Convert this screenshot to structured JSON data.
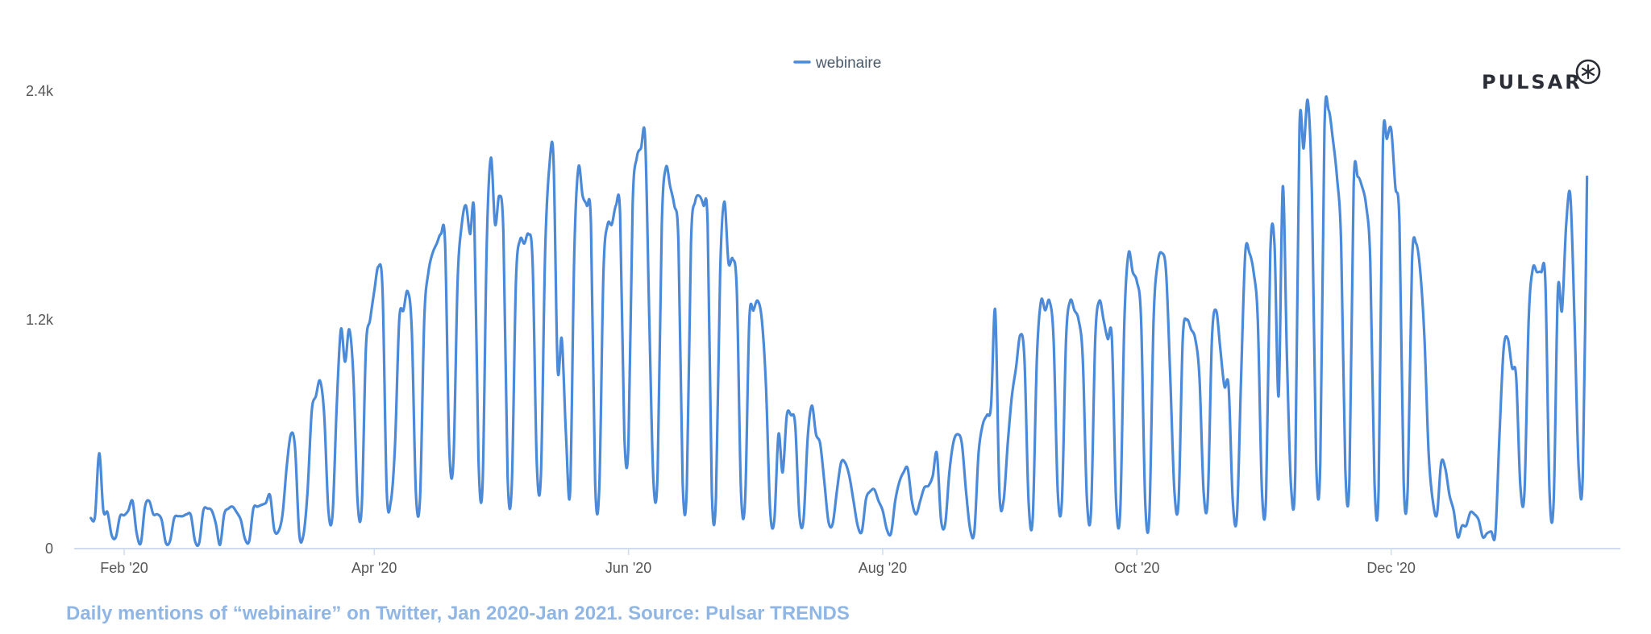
{
  "brand": {
    "logo_text": "PULSAR",
    "logo_icon": "pulsar-star-icon"
  },
  "caption": "Daily mentions of “webinaire” on Twitter, Jan 2020-Jan 2021. Source: Pulsar TRENDS",
  "colors": {
    "series": "#4a8ad9",
    "axis": "#cfdcee",
    "caption": "#8fb6e4"
  },
  "chart_data": {
    "type": "line",
    "legend_placement": "top-center",
    "grid": false,
    "xlim": [
      "2020-01-20",
      "2021-01-25"
    ],
    "ylim": [
      0,
      2400
    ],
    "y_ticks": [
      {
        "value": 0,
        "label": "0"
      },
      {
        "value": 1200,
        "label": "1.2k"
      },
      {
        "value": 2400,
        "label": "2.4k"
      }
    ],
    "x_ticks": [
      {
        "value": "2020-02-01",
        "label": "Feb '20"
      },
      {
        "value": "2020-04-01",
        "label": "Apr '20"
      },
      {
        "value": "2020-06-01",
        "label": "Jun '20"
      },
      {
        "value": "2020-08-01",
        "label": "Aug '20"
      },
      {
        "value": "2020-10-01",
        "label": "Oct '20"
      },
      {
        "value": "2020-12-01",
        "label": "Dec '20"
      }
    ],
    "series": [
      {
        "name": "webinaire",
        "start": "2020-01-24",
        "values": [
          160,
          170,
          500,
          200,
          190,
          70,
          60,
          170,
          175,
          200,
          250,
          80,
          30,
          220,
          250,
          180,
          180,
          150,
          30,
          40,
          160,
          170,
          170,
          180,
          175,
          40,
          30,
          200,
          210,
          200,
          130,
          20,
          180,
          210,
          220,
          190,
          150,
          50,
          40,
          210,
          220,
          230,
          240,
          280,
          100,
          90,
          180,
          430,
          600,
          530,
          80,
          70,
          300,
          720,
          800,
          880,
          700,
          200,
          180,
          750,
          1150,
          980,
          1150,
          900,
          250,
          220,
          1050,
          1200,
          1350,
          1480,
          1350,
          300,
          250,
          550,
          1200,
          1250,
          1350,
          1150,
          290,
          270,
          1200,
          1450,
          1550,
          1600,
          1650,
          1600,
          530,
          460,
          1400,
          1700,
          1800,
          1650,
          1750,
          480,
          340,
          1600,
          2050,
          1700,
          1850,
          1650,
          380,
          330,
          1400,
          1620,
          1600,
          1650,
          1500,
          450,
          390,
          1550,
          2000,
          2050,
          950,
          1100,
          600,
          300,
          1550,
          2000,
          1850,
          1800,
          1700,
          350,
          320,
          1450,
          1700,
          1700,
          1800,
          1750,
          600,
          550,
          1800,
          2050,
          2100,
          2150,
          1200,
          350,
          400,
          1700,
          2000,
          1900,
          1800,
          1600,
          350,
          320,
          1600,
          1820,
          1850,
          1800,
          1700,
          300,
          270,
          1450,
          1820,
          1500,
          1520,
          1350,
          300,
          260,
          1200,
          1250,
          1300,
          1200,
          850,
          200,
          150,
          600,
          400,
          700,
          700,
          650,
          180,
          150,
          580,
          750,
          600,
          550,
          350,
          140,
          130,
          300,
          450,
          450,
          380,
          250,
          120,
          90,
          260,
          300,
          310,
          250,
          200,
          100,
          80,
          250,
          350,
          400,
          420,
          250,
          180,
          250,
          320,
          330,
          380,
          500,
          150,
          130,
          400,
          560,
          600,
          550,
          300,
          100,
          90,
          500,
          650,
          700,
          750,
          1250,
          300,
          250,
          550,
          800,
          950,
          1120,
          1000,
          250,
          160,
          1000,
          1300,
          1250,
          1300,
          1100,
          300,
          250,
          1100,
          1300,
          1250,
          1200,
          1000,
          260,
          200,
          1100,
          1300,
          1200,
          1100,
          1100,
          250,
          200,
          1200,
          1550,
          1450,
          1400,
          1200,
          240,
          180,
          1200,
          1500,
          1550,
          1450,
          900,
          300,
          250,
          1100,
          1200,
          1150,
          1100,
          900,
          300,
          260,
          1100,
          1250,
          1050,
          850,
          850,
          250,
          170,
          900,
          1550,
          1550,
          1450,
          1200,
          300,
          280,
          1550,
          1600,
          800,
          1900,
          1000,
          320,
          400,
          2200,
          2100,
          2350,
          1850,
          460,
          450,
          2200,
          2300,
          2150,
          1950,
          1600,
          420,
          370,
          1900,
          1950,
          1900,
          1800,
          1500,
          350,
          320,
          2100,
          2150,
          2200,
          1900,
          1700,
          350,
          330,
          1500,
          1600,
          1450,
          1100,
          500,
          250,
          180,
          450,
          420,
          280,
          200,
          60,
          120,
          120,
          190,
          180,
          150,
          60,
          80,
          90,
          80,
          600,
          1050,
          1100,
          950,
          900,
          330,
          300,
          1200,
          1470,
          1450,
          1450,
          1400,
          300,
          250,
          1350,
          1250,
          1700,
          1850,
          1200,
          420,
          400,
          1950
        ]
      }
    ]
  }
}
